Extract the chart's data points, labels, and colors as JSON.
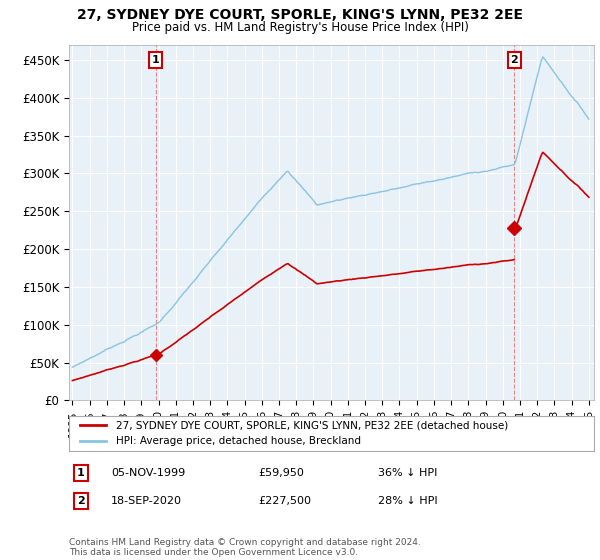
{
  "title": "27, SYDNEY DYE COURT, SPORLE, KING'S LYNN, PE32 2EE",
  "subtitle": "Price paid vs. HM Land Registry's House Price Index (HPI)",
  "ylabel_ticks": [
    "£0",
    "£50K",
    "£100K",
    "£150K",
    "£200K",
    "£250K",
    "£300K",
    "£350K",
    "£400K",
    "£450K"
  ],
  "ylim": [
    0,
    470000
  ],
  "yticks": [
    0,
    50000,
    100000,
    150000,
    200000,
    250000,
    300000,
    350000,
    400000,
    450000
  ],
  "legend_entry1": "27, SYDNEY DYE COURT, SPORLE, KING'S LYNN, PE32 2EE (detached house)",
  "legend_entry2": "HPI: Average price, detached house, Breckland",
  "marker1_date": "05-NOV-1999",
  "marker1_price": 59950,
  "marker1_label": "1",
  "marker1_note": "36% ↓ HPI",
  "marker2_date": "18-SEP-2020",
  "marker2_price": 227500,
  "marker2_label": "2",
  "marker2_note": "28% ↓ HPI",
  "footer": "Contains HM Land Registry data © Crown copyright and database right 2024.\nThis data is licensed under the Open Government Licence v3.0.",
  "line1_color": "#cc0000",
  "line2_color": "#89c4e1",
  "marker_color": "#cc0000",
  "background_color": "#ffffff",
  "plot_bg_color": "#e8f0f8",
  "grid_color": "#ffffff",
  "vline_color": "#dd8888"
}
